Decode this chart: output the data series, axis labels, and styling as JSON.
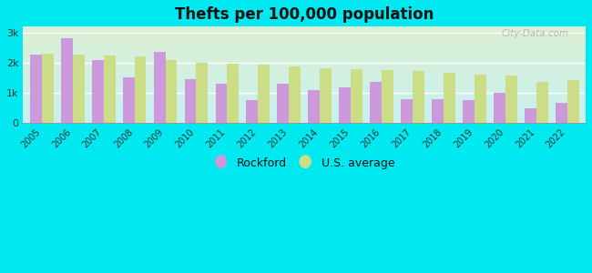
{
  "title": "Thefts per 100,000 population",
  "years": [
    2005,
    2006,
    2007,
    2008,
    2009,
    2010,
    2011,
    2012,
    2013,
    2014,
    2015,
    2016,
    2017,
    2018,
    2019,
    2020,
    2021,
    2022
  ],
  "rockford": [
    2270,
    2820,
    2100,
    1530,
    2350,
    1450,
    1300,
    750,
    1300,
    1100,
    1200,
    1380,
    800,
    790,
    760,
    1020,
    500,
    680
  ],
  "us_average": [
    2310,
    2280,
    2230,
    2200,
    2080,
    1990,
    1960,
    1930,
    1880,
    1820,
    1790,
    1770,
    1730,
    1670,
    1620,
    1590,
    1360,
    1420
  ],
  "rockford_color": "#cc99dd",
  "us_color": "#ccdd88",
  "background_outer": "#00e8f0",
  "bar_width": 0.38,
  "ylim": [
    0,
    3200
  ],
  "yticks": [
    0,
    1000,
    2000,
    3000
  ],
  "ytick_labels": [
    "0",
    "1k",
    "2k",
    "3k"
  ],
  "legend_labels": [
    "Rockford",
    "U.S. average"
  ],
  "watermark": "City-Data.com"
}
